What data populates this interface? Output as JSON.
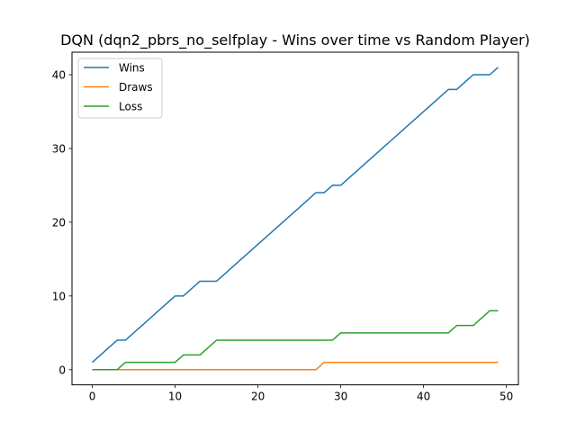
{
  "chart_data": {
    "type": "line",
    "title": "DQN (dqn2_pbrs_no_selfplay - Wins over time vs Random Player)",
    "xlabel": "",
    "ylabel": "",
    "xlim": [
      -2.45,
      51.45
    ],
    "ylim": [
      -2.05,
      43.05
    ],
    "xticks": [
      0,
      10,
      20,
      30,
      40,
      50
    ],
    "yticks": [
      0,
      10,
      20,
      30,
      40
    ],
    "grid": false,
    "legend_position": "upper left",
    "x": [
      0,
      1,
      2,
      3,
      4,
      5,
      6,
      7,
      8,
      9,
      10,
      11,
      12,
      13,
      14,
      15,
      16,
      17,
      18,
      19,
      20,
      21,
      22,
      23,
      24,
      25,
      26,
      27,
      28,
      29,
      30,
      31,
      32,
      33,
      34,
      35,
      36,
      37,
      38,
      39,
      40,
      41,
      42,
      43,
      44,
      45,
      46,
      47,
      48,
      49
    ],
    "series": [
      {
        "name": "Wins",
        "color": "#1f77b4",
        "values": [
          1,
          2,
          3,
          4,
          4,
          5,
          6,
          7,
          8,
          9,
          10,
          10,
          11,
          12,
          12,
          12,
          13,
          14,
          15,
          16,
          17,
          18,
          19,
          20,
          21,
          22,
          23,
          24,
          24,
          25,
          25,
          26,
          27,
          28,
          29,
          30,
          31,
          32,
          33,
          34,
          35,
          36,
          37,
          38,
          38,
          39,
          40,
          40,
          40,
          41
        ]
      },
      {
        "name": "Draws",
        "color": "#ff7f0e",
        "values": [
          0,
          0,
          0,
          0,
          0,
          0,
          0,
          0,
          0,
          0,
          0,
          0,
          0,
          0,
          0,
          0,
          0,
          0,
          0,
          0,
          0,
          0,
          0,
          0,
          0,
          0,
          0,
          0,
          1,
          1,
          1,
          1,
          1,
          1,
          1,
          1,
          1,
          1,
          1,
          1,
          1,
          1,
          1,
          1,
          1,
          1,
          1,
          1,
          1,
          1
        ]
      },
      {
        "name": "Loss",
        "color": "#2ca02c",
        "values": [
          0,
          0,
          0,
          0,
          1,
          1,
          1,
          1,
          1,
          1,
          1,
          2,
          2,
          2,
          3,
          4,
          4,
          4,
          4,
          4,
          4,
          4,
          4,
          4,
          4,
          4,
          4,
          4,
          4,
          4,
          5,
          5,
          5,
          5,
          5,
          5,
          5,
          5,
          5,
          5,
          5,
          5,
          5,
          5,
          6,
          6,
          6,
          7,
          8,
          8
        ]
      }
    ]
  }
}
